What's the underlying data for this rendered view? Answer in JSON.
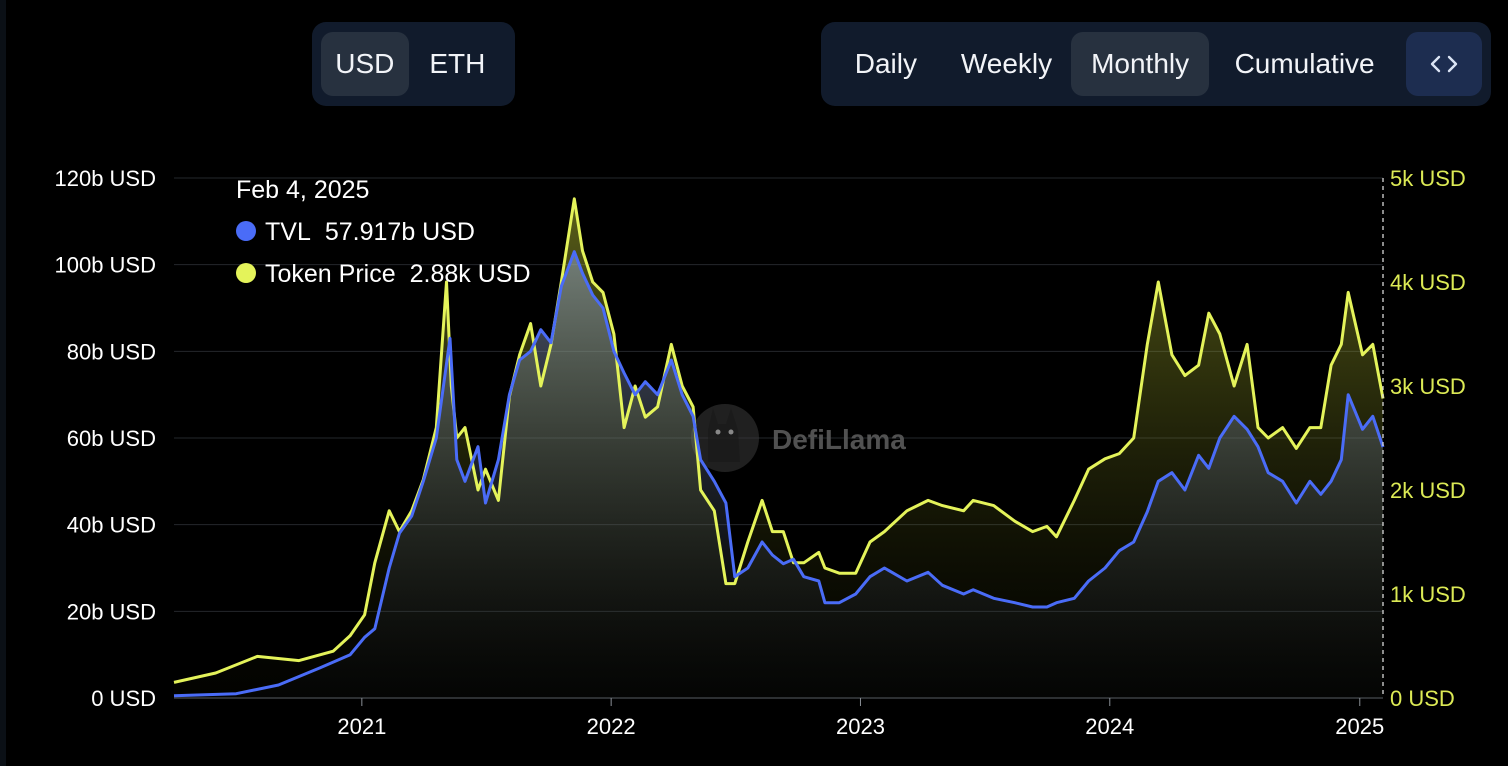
{
  "denomination": {
    "options": [
      "USD",
      "ETH"
    ],
    "selected": "USD"
  },
  "period": {
    "options": [
      "Daily",
      "Weekly",
      "Monthly",
      "Cumulative"
    ],
    "selected": "Monthly",
    "embed_icon": "code-icon"
  },
  "colors": {
    "tvl": "#4a6cf7",
    "price": "#e4f35a",
    "price_axis": "#dcea55",
    "background": "#000000",
    "panel": "#111b2c"
  },
  "chart_data": {
    "type": "line",
    "title": "",
    "xlabel": "",
    "ylabel": "",
    "x_ticks": [
      "2021",
      "2022",
      "2023",
      "2024",
      "2025"
    ],
    "y_left": {
      "ticks": [
        "0 USD",
        "20b USD",
        "40b USD",
        "60b USD",
        "80b USD",
        "100b USD",
        "120b USD"
      ],
      "range": [
        0,
        120
      ],
      "unit": "b USD"
    },
    "y_right": {
      "ticks": [
        "0 USD",
        "1k USD",
        "2k USD",
        "3k USD",
        "4k USD",
        "5k USD"
      ],
      "range": [
        0,
        5
      ],
      "unit": "k USD"
    },
    "grid": "horizontal",
    "tooltip": {
      "date": "Feb 4, 2025",
      "rows": [
        {
          "name": "TVL",
          "value": "57.917b USD",
          "color": "#4a6cf7"
        },
        {
          "name": "Token Price",
          "value": "2.88k USD",
          "color": "#e4f35a"
        }
      ]
    },
    "watermark": "DefiLlama",
    "series": [
      {
        "name": "TVL",
        "axis": "left",
        "x": [
          "2020-04-01",
          "2020-07-01",
          "2020-09-01",
          "2020-11-01",
          "2020-12-15",
          "2021-01-05",
          "2021-01-20",
          "2021-02-10",
          "2021-02-25",
          "2021-03-15",
          "2021-04-01",
          "2021-04-20",
          "2021-05-10",
          "2021-05-20",
          "2021-06-01",
          "2021-06-20",
          "2021-07-01",
          "2021-07-20",
          "2021-08-05",
          "2021-08-20",
          "2021-09-05",
          "2021-09-20",
          "2021-10-05",
          "2021-10-20",
          "2021-11-08",
          "2021-11-20",
          "2021-12-05",
          "2021-12-20",
          "2022-01-05",
          "2022-01-20",
          "2022-02-05",
          "2022-02-20",
          "2022-03-10",
          "2022-03-30",
          "2022-04-15",
          "2022-05-01",
          "2022-05-12",
          "2022-06-01",
          "2022-06-18",
          "2022-07-01",
          "2022-07-20",
          "2022-08-10",
          "2022-08-25",
          "2022-09-10",
          "2022-09-25",
          "2022-10-10",
          "2022-11-01",
          "2022-11-10",
          "2022-12-01",
          "2022-12-25",
          "2023-01-15",
          "2023-02-05",
          "2023-03-10",
          "2023-04-10",
          "2023-05-01",
          "2023-06-01",
          "2023-06-15",
          "2023-07-15",
          "2023-08-15",
          "2023-09-10",
          "2023-10-01",
          "2023-10-15",
          "2023-11-10",
          "2023-12-01",
          "2023-12-25",
          "2024-01-15",
          "2024-02-05",
          "2024-02-25",
          "2024-03-12",
          "2024-04-01",
          "2024-04-20",
          "2024-05-10",
          "2024-05-25",
          "2024-06-10",
          "2024-07-01",
          "2024-07-20",
          "2024-08-05",
          "2024-08-20",
          "2024-09-10",
          "2024-09-30",
          "2024-10-20",
          "2024-11-05",
          "2024-11-20",
          "2024-12-05",
          "2024-12-15",
          "2025-01-05",
          "2025-01-20",
          "2025-02-04"
        ],
        "y": [
          0.5,
          1,
          3,
          7,
          10,
          14,
          16,
          30,
          38,
          42,
          50,
          60,
          83,
          55,
          50,
          58,
          45,
          55,
          70,
          78,
          80,
          85,
          82,
          95,
          103,
          98,
          93,
          90,
          80,
          75,
          70,
          73,
          70,
          78,
          70,
          65,
          55,
          50,
          45,
          28,
          30,
          36,
          33,
          31,
          32,
          28,
          27,
          22,
          22,
          24,
          28,
          30,
          27,
          29,
          26,
          24,
          25,
          23,
          22,
          21,
          21,
          22,
          23,
          27,
          30,
          34,
          36,
          43,
          50,
          52,
          48,
          56,
          53,
          60,
          65,
          62,
          58,
          52,
          50,
          45,
          50,
          47,
          50,
          55,
          70,
          62,
          65,
          57.917
        ]
      },
      {
        "name": "Token Price",
        "axis": "right",
        "x": [
          "2020-04-01",
          "2020-06-01",
          "2020-08-01",
          "2020-10-01",
          "2020-11-20",
          "2020-12-15",
          "2021-01-05",
          "2021-01-20",
          "2021-02-10",
          "2021-02-25",
          "2021-03-15",
          "2021-04-01",
          "2021-04-20",
          "2021-05-05",
          "2021-05-12",
          "2021-05-20",
          "2021-06-01",
          "2021-06-20",
          "2021-07-01",
          "2021-07-20",
          "2021-08-05",
          "2021-08-20",
          "2021-09-05",
          "2021-09-20",
          "2021-10-05",
          "2021-10-20",
          "2021-11-08",
          "2021-11-20",
          "2021-12-05",
          "2021-12-20",
          "2022-01-05",
          "2022-01-20",
          "2022-02-05",
          "2022-02-20",
          "2022-03-10",
          "2022-03-30",
          "2022-04-15",
          "2022-05-01",
          "2022-05-12",
          "2022-06-01",
          "2022-06-18",
          "2022-07-01",
          "2022-07-20",
          "2022-08-10",
          "2022-08-25",
          "2022-09-10",
          "2022-09-25",
          "2022-10-10",
          "2022-11-01",
          "2022-11-10",
          "2022-12-01",
          "2022-12-25",
          "2023-01-15",
          "2023-02-05",
          "2023-03-10",
          "2023-04-10",
          "2023-05-01",
          "2023-06-01",
          "2023-06-15",
          "2023-07-15",
          "2023-08-15",
          "2023-09-10",
          "2023-10-01",
          "2023-10-15",
          "2023-11-10",
          "2023-12-01",
          "2023-12-25",
          "2024-01-15",
          "2024-02-05",
          "2024-02-25",
          "2024-03-12",
          "2024-04-01",
          "2024-04-20",
          "2024-05-10",
          "2024-05-25",
          "2024-06-10",
          "2024-07-01",
          "2024-07-20",
          "2024-08-05",
          "2024-08-20",
          "2024-09-10",
          "2024-09-30",
          "2024-10-20",
          "2024-11-05",
          "2024-11-20",
          "2024-12-05",
          "2024-12-15",
          "2025-01-05",
          "2025-01-20",
          "2025-02-04"
        ],
        "y": [
          0.15,
          0.24,
          0.4,
          0.36,
          0.45,
          0.6,
          0.8,
          1.3,
          1.8,
          1.6,
          1.8,
          2.1,
          2.6,
          4.0,
          3.0,
          2.5,
          2.6,
          2.0,
          2.2,
          1.9,
          2.9,
          3.3,
          3.6,
          3.0,
          3.4,
          4.0,
          4.8,
          4.3,
          4.0,
          3.9,
          3.5,
          2.6,
          3.0,
          2.7,
          2.8,
          3.4,
          3.0,
          2.8,
          2.0,
          1.8,
          1.1,
          1.1,
          1.5,
          1.9,
          1.6,
          1.6,
          1.3,
          1.3,
          1.4,
          1.25,
          1.2,
          1.2,
          1.5,
          1.6,
          1.8,
          1.9,
          1.85,
          1.8,
          1.9,
          1.85,
          1.7,
          1.6,
          1.65,
          1.55,
          1.9,
          2.2,
          2.3,
          2.35,
          2.5,
          3.4,
          4.0,
          3.3,
          3.1,
          3.2,
          3.7,
          3.5,
          3.0,
          3.4,
          2.6,
          2.5,
          2.6,
          2.4,
          2.6,
          2.6,
          3.2,
          3.4,
          3.9,
          3.3,
          3.4,
          2.88
        ]
      }
    ]
  }
}
